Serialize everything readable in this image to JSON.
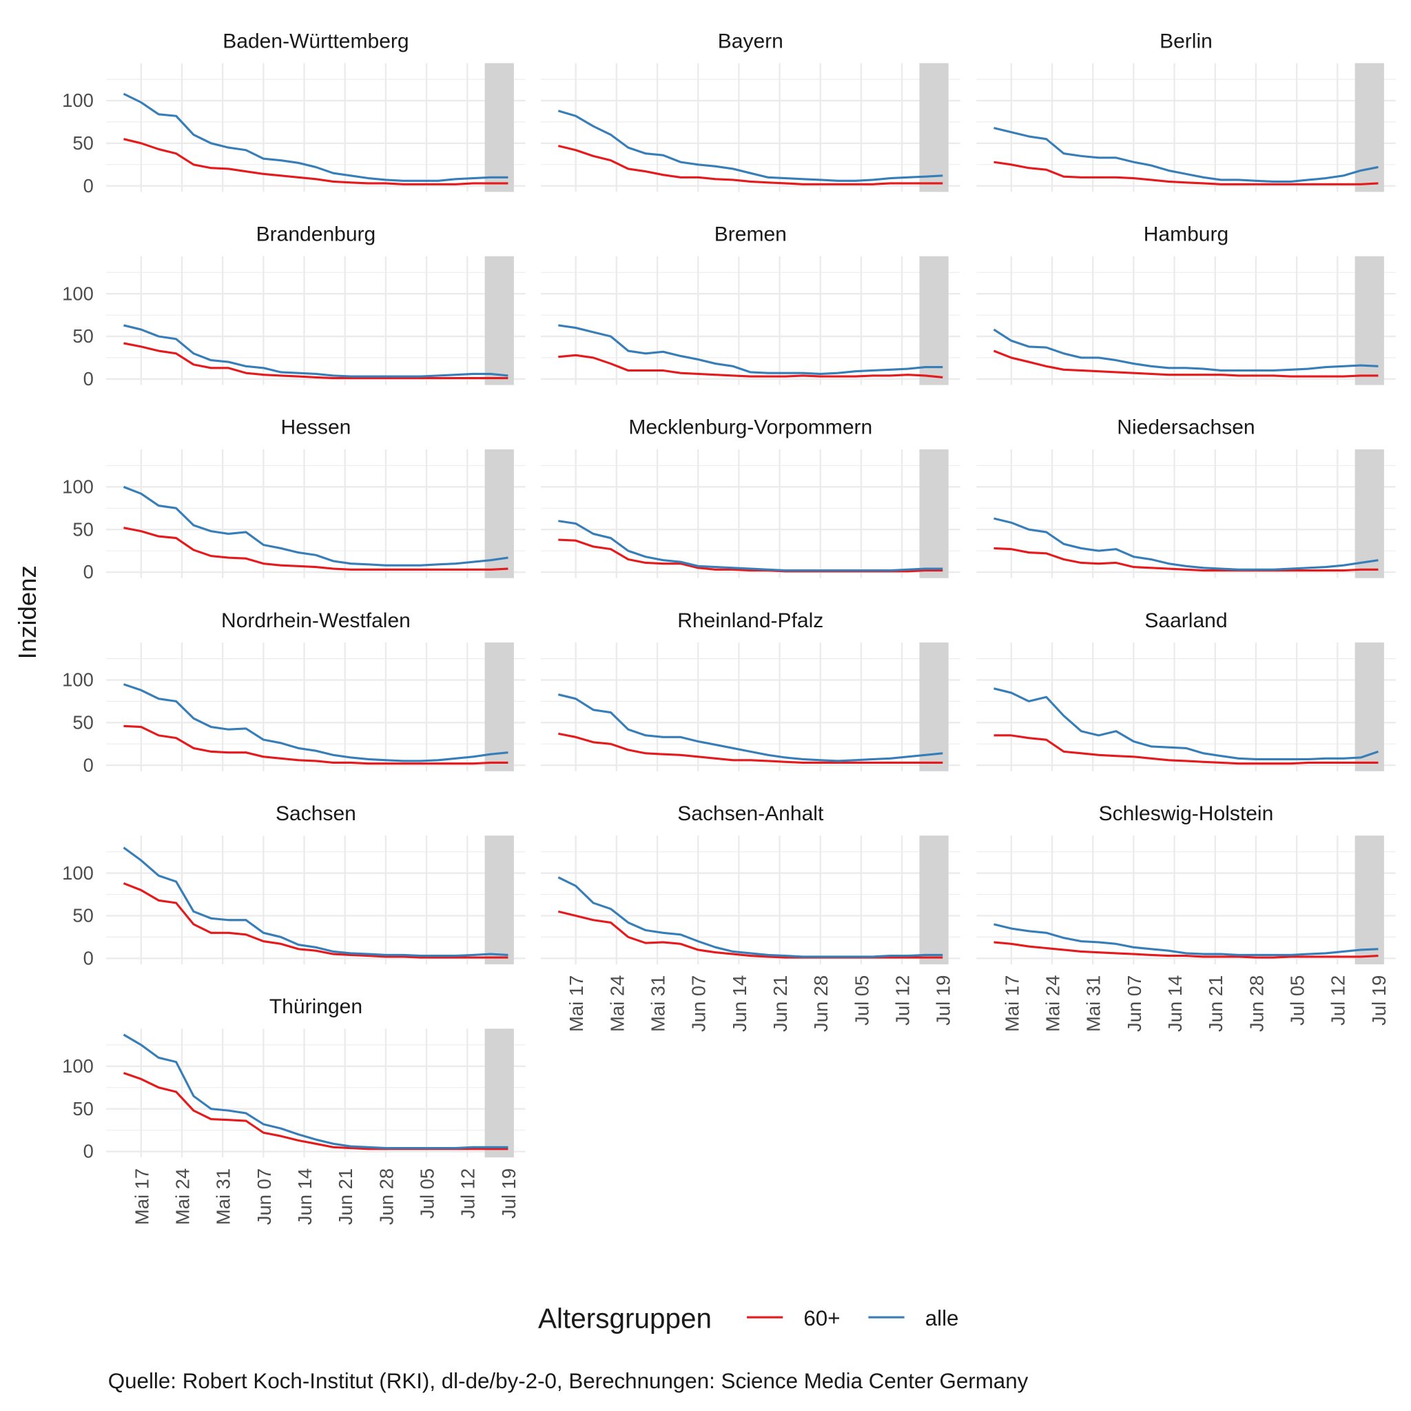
{
  "chart_data": {
    "type": "line",
    "ylabel": "Inzidenz",
    "legend_title": "Altersgruppen",
    "legend_position": "bottom",
    "caption": "Quelle: Robert Koch-Institut (RKI), dl-de/by-2-0, Berechnungen: Science Media Center Germany",
    "grid": true,
    "x": [
      "05-14",
      "05-17",
      "05-20",
      "05-23",
      "05-26",
      "05-29",
      "06-01",
      "06-04",
      "06-07",
      "06-10",
      "06-13",
      "06-16",
      "06-19",
      "06-22",
      "06-25",
      "06-28",
      "07-01",
      "07-04",
      "07-07",
      "07-10",
      "07-13",
      "07-16",
      "07-19"
    ],
    "xlim": [
      "05-11",
      "07-22"
    ],
    "xticks": [
      {
        "value": "05-17",
        "label": "Mai 17"
      },
      {
        "value": "05-24",
        "label": "Mai 24"
      },
      {
        "value": "05-31",
        "label": "Mai 31"
      },
      {
        "value": "06-07",
        "label": "Jun 07"
      },
      {
        "value": "06-14",
        "label": "Jun 14"
      },
      {
        "value": "06-21",
        "label": "Jun 21"
      },
      {
        "value": "06-28",
        "label": "Jun 28"
      },
      {
        "value": "07-05",
        "label": "Jul 05"
      },
      {
        "value": "07-12",
        "label": "Jul 12"
      },
      {
        "value": "07-19",
        "label": "Jul 19"
      }
    ],
    "shade": [
      "07-15",
      "07-20"
    ],
    "ylim": [
      -7,
      144
    ],
    "yticks": [
      0,
      50,
      100
    ],
    "yminor": [
      25,
      75,
      125
    ],
    "facets": [
      {
        "title": "Baden-Württemberg",
        "series": [
          {
            "name": "60+",
            "color": "#e41a1c",
            "values": [
              55,
              50,
              43,
              38,
              25,
              21,
              20,
              17,
              14,
              12,
              10,
              8,
              5,
              4,
              3,
              3,
              2,
              2,
              2,
              2,
              3,
              3,
              3
            ]
          },
          {
            "name": "alle",
            "color": "#377eb8",
            "values": [
              108,
              98,
              84,
              82,
              60,
              50,
              45,
              42,
              32,
              30,
              27,
              22,
              15,
              12,
              9,
              7,
              6,
              6,
              6,
              8,
              9,
              10,
              10
            ]
          }
        ]
      },
      {
        "title": "Bayern",
        "series": [
          {
            "name": "60+",
            "color": "#e41a1c",
            "values": [
              47,
              42,
              35,
              30,
              20,
              17,
              13,
              10,
              10,
              8,
              7,
              5,
              4,
              3,
              2,
              2,
              2,
              2,
              2,
              3,
              3,
              3,
              3
            ]
          },
          {
            "name": "alle",
            "color": "#377eb8",
            "values": [
              88,
              82,
              70,
              60,
              45,
              38,
              36,
              28,
              25,
              23,
              20,
              15,
              10,
              9,
              8,
              7,
              6,
              6,
              7,
              9,
              10,
              11,
              12
            ]
          }
        ]
      },
      {
        "title": "Berlin",
        "series": [
          {
            "name": "60+",
            "color": "#e41a1c",
            "values": [
              28,
              25,
              21,
              19,
              11,
              10,
              10,
              10,
              9,
              7,
              5,
              4,
              3,
              2,
              2,
              2,
              2,
              2,
              2,
              2,
              2,
              2,
              3
            ]
          },
          {
            "name": "alle",
            "color": "#377eb8",
            "values": [
              68,
              63,
              58,
              55,
              38,
              35,
              33,
              33,
              28,
              24,
              18,
              14,
              10,
              7,
              7,
              6,
              5,
              5,
              7,
              9,
              12,
              18,
              22
            ]
          }
        ]
      },
      {
        "title": "Brandenburg",
        "series": [
          {
            "name": "60+",
            "color": "#e41a1c",
            "values": [
              42,
              38,
              33,
              30,
              17,
              13,
              13,
              7,
              5,
              4,
              3,
              2,
              1,
              1,
              1,
              1,
              1,
              1,
              1,
              1,
              1,
              1,
              1
            ]
          },
          {
            "name": "alle",
            "color": "#377eb8",
            "values": [
              63,
              58,
              50,
              47,
              30,
              22,
              20,
              15,
              13,
              8,
              7,
              6,
              4,
              3,
              3,
              3,
              3,
              3,
              4,
              5,
              6,
              6,
              4
            ]
          }
        ]
      },
      {
        "title": "Bremen",
        "series": [
          {
            "name": "60+",
            "color": "#e41a1c",
            "values": [
              26,
              28,
              25,
              18,
              10,
              10,
              10,
              7,
              6,
              5,
              4,
              3,
              3,
              3,
              4,
              3,
              3,
              3,
              4,
              4,
              5,
              4,
              2
            ]
          },
          {
            "name": "alle",
            "color": "#377eb8",
            "values": [
              63,
              60,
              55,
              50,
              33,
              30,
              32,
              27,
              23,
              18,
              15,
              8,
              7,
              7,
              7,
              6,
              7,
              9,
              10,
              11,
              12,
              14,
              14
            ]
          }
        ]
      },
      {
        "title": "Hamburg",
        "series": [
          {
            "name": "60+",
            "color": "#e41a1c",
            "values": [
              33,
              25,
              20,
              15,
              11,
              10,
              9,
              8,
              7,
              6,
              5,
              5,
              5,
              5,
              4,
              4,
              4,
              3,
              3,
              3,
              3,
              4,
              4
            ]
          },
          {
            "name": "alle",
            "color": "#377eb8",
            "values": [
              58,
              45,
              38,
              37,
              30,
              25,
              25,
              22,
              18,
              15,
              13,
              13,
              12,
              10,
              10,
              10,
              10,
              11,
              12,
              14,
              15,
              16,
              15
            ]
          }
        ]
      },
      {
        "title": "Hessen",
        "series": [
          {
            "name": "60+",
            "color": "#e41a1c",
            "values": [
              52,
              48,
              42,
              40,
              26,
              19,
              17,
              16,
              10,
              8,
              7,
              6,
              4,
              3,
              3,
              3,
              3,
              3,
              3,
              3,
              3,
              3,
              4
            ]
          },
          {
            "name": "alle",
            "color": "#377eb8",
            "values": [
              100,
              92,
              78,
              75,
              55,
              48,
              45,
              47,
              32,
              28,
              23,
              20,
              13,
              10,
              9,
              8,
              8,
              8,
              9,
              10,
              12,
              14,
              17
            ]
          }
        ]
      },
      {
        "title": "Mecklenburg-Vorpommern",
        "series": [
          {
            "name": "60+",
            "color": "#e41a1c",
            "values": [
              38,
              37,
              30,
              27,
              15,
              11,
              10,
              10,
              5,
              3,
              3,
              2,
              2,
              1,
              1,
              1,
              1,
              1,
              1,
              1,
              1,
              2,
              2
            ]
          },
          {
            "name": "alle",
            "color": "#377eb8",
            "values": [
              60,
              57,
              45,
              40,
              25,
              18,
              14,
              12,
              7,
              6,
              5,
              4,
              3,
              2,
              2,
              2,
              2,
              2,
              2,
              2,
              3,
              4,
              4
            ]
          }
        ]
      },
      {
        "title": "Niedersachsen",
        "series": [
          {
            "name": "60+",
            "color": "#e41a1c",
            "values": [
              28,
              27,
              23,
              22,
              15,
              11,
              10,
              11,
              6,
              5,
              4,
              3,
              2,
              2,
              2,
              2,
              2,
              2,
              2,
              2,
              2,
              3,
              3
            ]
          },
          {
            "name": "alle",
            "color": "#377eb8",
            "values": [
              63,
              58,
              50,
              47,
              33,
              28,
              25,
              27,
              18,
              15,
              10,
              7,
              5,
              4,
              3,
              3,
              3,
              4,
              5,
              6,
              8,
              11,
              14
            ]
          }
        ]
      },
      {
        "title": "Nordrhein-Westfalen",
        "series": [
          {
            "name": "60+",
            "color": "#e41a1c",
            "values": [
              46,
              45,
              35,
              32,
              20,
              16,
              15,
              15,
              10,
              8,
              6,
              5,
              3,
              3,
              2,
              2,
              2,
              2,
              2,
              2,
              2,
              3,
              3
            ]
          },
          {
            "name": "alle",
            "color": "#377eb8",
            "values": [
              95,
              88,
              78,
              75,
              55,
              45,
              42,
              43,
              30,
              26,
              20,
              17,
              12,
              9,
              7,
              6,
              5,
              5,
              6,
              8,
              10,
              13,
              15
            ]
          }
        ]
      },
      {
        "title": "Rheinland-Pfalz",
        "series": [
          {
            "name": "60+",
            "color": "#e41a1c",
            "values": [
              37,
              33,
              27,
              25,
              18,
              14,
              13,
              12,
              10,
              8,
              6,
              6,
              5,
              4,
              3,
              3,
              3,
              3,
              3,
              3,
              3,
              3,
              3
            ]
          },
          {
            "name": "alle",
            "color": "#377eb8",
            "values": [
              83,
              78,
              65,
              62,
              42,
              35,
              33,
              33,
              28,
              24,
              20,
              16,
              12,
              9,
              7,
              6,
              5,
              6,
              7,
              8,
              10,
              12,
              14
            ]
          }
        ]
      },
      {
        "title": "Saarland",
        "series": [
          {
            "name": "60+",
            "color": "#e41a1c",
            "values": [
              35,
              35,
              32,
              30,
              16,
              14,
              12,
              11,
              10,
              8,
              6,
              5,
              4,
              3,
              2,
              2,
              2,
              2,
              3,
              3,
              3,
              3,
              3
            ]
          },
          {
            "name": "alle",
            "color": "#377eb8",
            "values": [
              90,
              85,
              75,
              80,
              58,
              40,
              35,
              40,
              28,
              22,
              21,
              20,
              14,
              11,
              8,
              7,
              7,
              7,
              7,
              8,
              8,
              9,
              16
            ]
          }
        ]
      },
      {
        "title": "Sachsen",
        "series": [
          {
            "name": "60+",
            "color": "#e41a1c",
            "values": [
              88,
              80,
              68,
              65,
              40,
              30,
              30,
              28,
              20,
              17,
              11,
              9,
              5,
              4,
              3,
              2,
              2,
              1,
              1,
              1,
              1,
              1,
              1
            ]
          },
          {
            "name": "alle",
            "color": "#377eb8",
            "values": [
              130,
              115,
              97,
              90,
              55,
              47,
              45,
              45,
              30,
              25,
              16,
              13,
              8,
              6,
              5,
              4,
              4,
              3,
              3,
              3,
              4,
              5,
              4
            ]
          }
        ]
      },
      {
        "title": "Sachsen-Anhalt",
        "series": [
          {
            "name": "60+",
            "color": "#e41a1c",
            "values": [
              55,
              50,
              45,
              42,
              25,
              18,
              19,
              17,
              10,
              7,
              5,
              3,
              2,
              1,
              1,
              1,
              1,
              1,
              1,
              1,
              1,
              1,
              1
            ]
          },
          {
            "name": "alle",
            "color": "#377eb8",
            "values": [
              95,
              85,
              65,
              58,
              42,
              33,
              30,
              28,
              20,
              13,
              8,
              6,
              4,
              3,
              2,
              2,
              2,
              2,
              2,
              3,
              3,
              4,
              4
            ]
          }
        ]
      },
      {
        "title": "Schleswig-Holstein",
        "series": [
          {
            "name": "60+",
            "color": "#e41a1c",
            "values": [
              19,
              17,
              14,
              12,
              10,
              8,
              7,
              6,
              5,
              4,
              3,
              3,
              2,
              2,
              2,
              1,
              1,
              2,
              2,
              2,
              2,
              2,
              3
            ]
          },
          {
            "name": "alle",
            "color": "#377eb8",
            "values": [
              40,
              35,
              32,
              30,
              24,
              20,
              19,
              17,
              13,
              11,
              9,
              6,
              5,
              5,
              4,
              4,
              4,
              4,
              5,
              6,
              8,
              10,
              11
            ]
          }
        ]
      },
      {
        "title": "Thüringen",
        "series": [
          {
            "name": "60+",
            "color": "#e41a1c",
            "values": [
              92,
              85,
              75,
              70,
              48,
              38,
              37,
              36,
              22,
              18,
              13,
              9,
              5,
              4,
              3,
              3,
              3,
              3,
              3,
              3,
              3,
              3,
              3
            ]
          },
          {
            "name": "alle",
            "color": "#377eb8",
            "values": [
              137,
              125,
              110,
              105,
              65,
              50,
              48,
              45,
              32,
              27,
              20,
              14,
              9,
              6,
              5,
              4,
              4,
              4,
              4,
              4,
              5,
              5,
              5
            ]
          }
        ]
      }
    ]
  }
}
